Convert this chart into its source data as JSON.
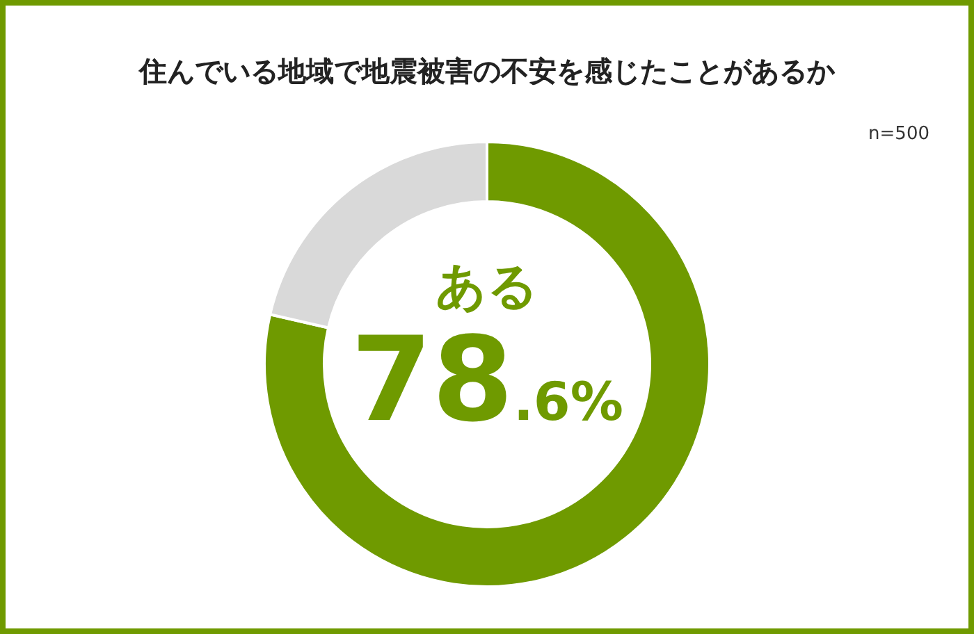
{
  "chart_data": {
    "type": "donut",
    "title": "住んでいる地域で地震被害の不安を感じたことがあるか",
    "annotations": [
      "n=500"
    ],
    "categories": [
      "ある",
      null
    ],
    "values": [
      78.6,
      21.4
    ],
    "colors": [
      "#6f9a00",
      "#d9d9d9"
    ],
    "value_labels": [
      "78.6%",
      null
    ],
    "legend": false
  }
}
